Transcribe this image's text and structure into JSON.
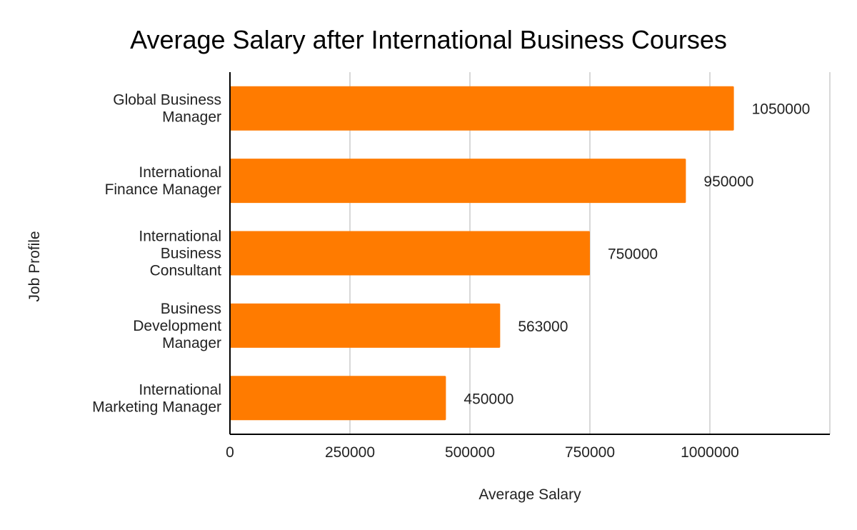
{
  "chart_data": {
    "type": "bar",
    "orientation": "horizontal",
    "title": "Average Salary after International Business Courses",
    "xlabel": "Average Salary",
    "ylabel": "Job Profile",
    "categories": [
      "Global Business Manager",
      "International Finance Manager",
      "International Business Consultant",
      "Business Development Manager",
      "International Marketing Manager"
    ],
    "category_lines": [
      [
        "Global Business",
        "Manager"
      ],
      [
        "International",
        "Finance Manager"
      ],
      [
        "International",
        "Business",
        "Consultant"
      ],
      [
        "Business",
        "Development",
        "Manager"
      ],
      [
        "International",
        "Marketing Manager"
      ]
    ],
    "values": [
      1050000,
      950000,
      750000,
      563000,
      450000
    ],
    "data_labels": [
      "1050000",
      "950000",
      "750000",
      "563000",
      "450000"
    ],
    "xlim": [
      0,
      1250000
    ],
    "xticks": [
      0,
      250000,
      500000,
      750000,
      1000000
    ],
    "xtick_labels": [
      "0",
      "250000",
      "500000",
      "750000",
      "1000000"
    ],
    "grid": true,
    "legend": "none",
    "colors": {
      "bar": "#ff7b00",
      "grid": "#cccccc",
      "axis": "#000000"
    }
  }
}
